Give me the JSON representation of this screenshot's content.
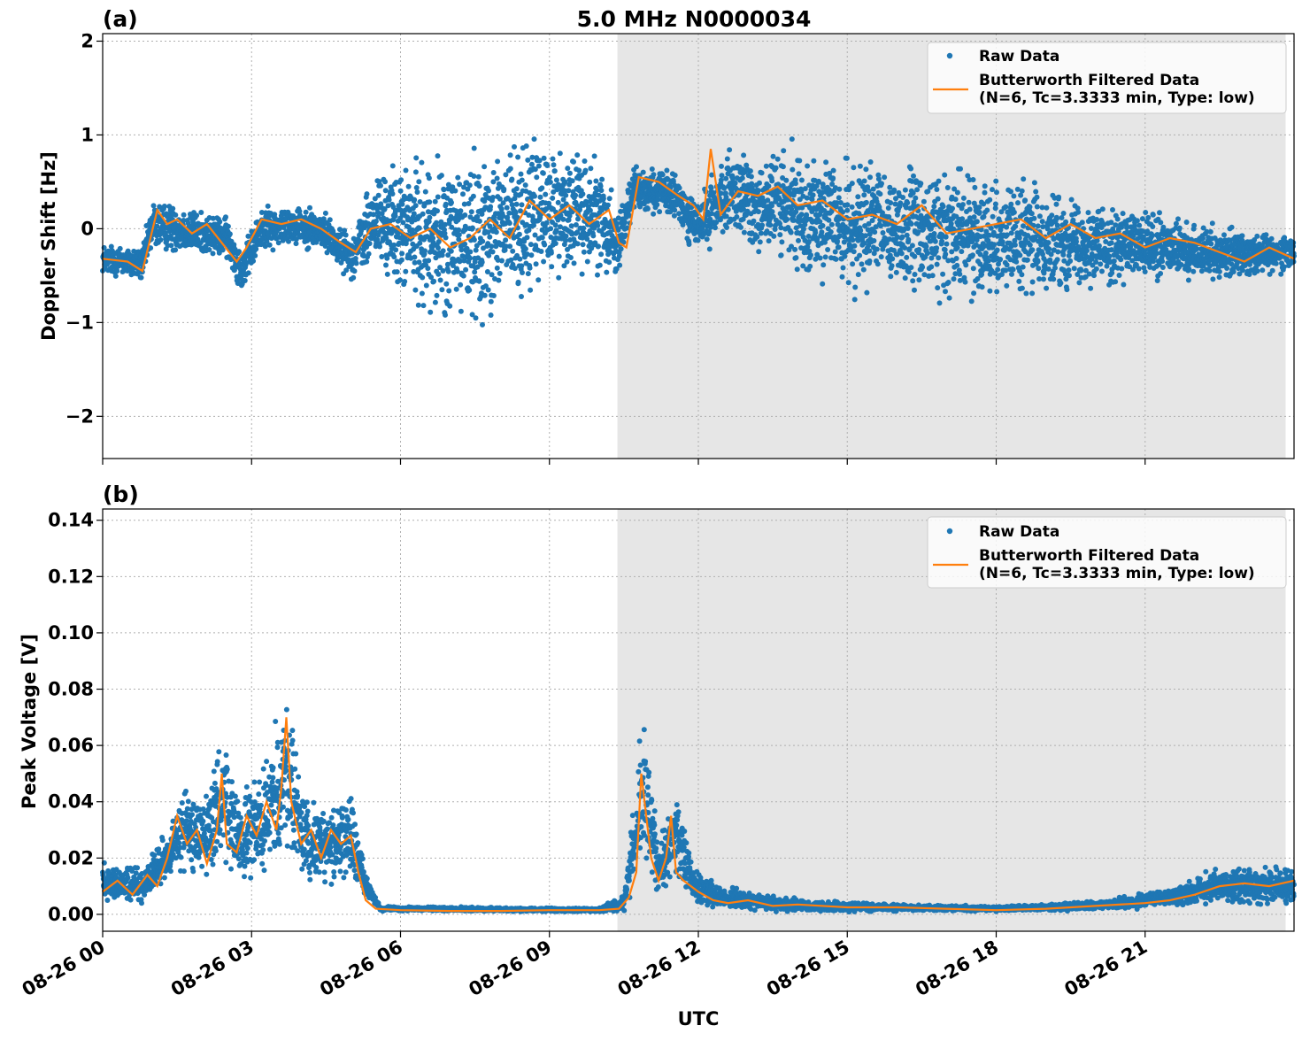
{
  "chart_data": [
    {
      "type": "scatter",
      "panel_label": "(a)",
      "title": "5.0 MHz N0000034",
      "xlabel": "",
      "ylabel": "Doppler Shift [Hz]",
      "x_range_hours": [
        0,
        24
      ],
      "ylim": [
        -2.45,
        2.08
      ],
      "yticks": [
        {
          "value": 2,
          "label": "2"
        },
        {
          "value": 1,
          "label": "1"
        },
        {
          "value": 0,
          "label": "0"
        },
        {
          "value": -1,
          "label": "−1"
        },
        {
          "value": -2,
          "label": "−2"
        }
      ],
      "grid": true,
      "legend_position": "top-right",
      "shaded_region_hours": [
        10.37,
        23.83
      ],
      "series": [
        {
          "name": "Raw Data",
          "kind": "points",
          "color": "#1f77b4",
          "profile": [
            {
              "x": 0.0,
              "center": -0.32,
              "spread": 0.22
            },
            {
              "x": 0.8,
              "center": -0.38,
              "spread": 0.25
            },
            {
              "x": 1.0,
              "center": 0.05,
              "spread": 0.35
            },
            {
              "x": 1.5,
              "center": 0.0,
              "spread": 0.35
            },
            {
              "x": 2.0,
              "center": -0.05,
              "spread": 0.3
            },
            {
              "x": 2.5,
              "center": -0.1,
              "spread": 0.3
            },
            {
              "x": 2.8,
              "center": -0.45,
              "spread": 0.3
            },
            {
              "x": 3.2,
              "center": 0.0,
              "spread": 0.3
            },
            {
              "x": 4.0,
              "center": 0.05,
              "spread": 0.3
            },
            {
              "x": 4.5,
              "center": -0.05,
              "spread": 0.3
            },
            {
              "x": 5.0,
              "center": -0.3,
              "spread": 0.3
            },
            {
              "x": 5.5,
              "center": 0.1,
              "spread": 0.7
            },
            {
              "x": 6.0,
              "center": 0.0,
              "spread": 0.9
            },
            {
              "x": 7.0,
              "center": -0.15,
              "spread": 1.2
            },
            {
              "x": 8.0,
              "center": 0.0,
              "spread": 1.2
            },
            {
              "x": 9.0,
              "center": 0.2,
              "spread": 1.0
            },
            {
              "x": 10.0,
              "center": 0.15,
              "spread": 0.8
            },
            {
              "x": 10.4,
              "center": -0.15,
              "spread": 0.5
            },
            {
              "x": 10.7,
              "center": 0.45,
              "spread": 0.3
            },
            {
              "x": 11.5,
              "center": 0.35,
              "spread": 0.35
            },
            {
              "x": 12.0,
              "center": 0.0,
              "spread": 0.4
            },
            {
              "x": 12.5,
              "center": 0.35,
              "spread": 0.6
            },
            {
              "x": 13.5,
              "center": 0.25,
              "spread": 0.8
            },
            {
              "x": 15.0,
              "center": 0.05,
              "spread": 0.9
            },
            {
              "x": 17.0,
              "center": -0.05,
              "spread": 0.9
            },
            {
              "x": 18.5,
              "center": -0.1,
              "spread": 0.8
            },
            {
              "x": 20.0,
              "center": -0.15,
              "spread": 0.6
            },
            {
              "x": 22.0,
              "center": -0.25,
              "spread": 0.4
            },
            {
              "x": 24.0,
              "center": -0.25,
              "spread": 0.25
            }
          ]
        },
        {
          "name": "Butterworth Filtered Data\n(N=6, Tc=3.3333 min, Type: low)",
          "kind": "line",
          "color": "#ff7f0e",
          "x": [
            0.0,
            0.5,
            0.8,
            1.1,
            1.3,
            1.5,
            1.8,
            2.1,
            2.4,
            2.7,
            2.9,
            3.2,
            3.6,
            4.0,
            4.4,
            4.8,
            5.1,
            5.4,
            5.8,
            6.2,
            6.6,
            7.0,
            7.4,
            7.8,
            8.2,
            8.6,
            9.0,
            9.4,
            9.8,
            10.2,
            10.4,
            10.55,
            10.8,
            11.2,
            11.6,
            11.9,
            12.1,
            12.25,
            12.45,
            12.8,
            13.2,
            13.6,
            14.0,
            14.5,
            15.0,
            15.5,
            16.0,
            16.5,
            17.0,
            17.5,
            18.0,
            18.5,
            19.0,
            19.5,
            20.0,
            20.5,
            21.0,
            21.5,
            22.0,
            22.5,
            23.0,
            23.5,
            24.0
          ],
          "y": [
            -0.32,
            -0.35,
            -0.45,
            0.2,
            0.05,
            0.1,
            -0.05,
            0.05,
            -0.15,
            -0.35,
            -0.2,
            0.1,
            0.05,
            0.1,
            0.0,
            -0.15,
            -0.25,
            0.0,
            0.05,
            -0.1,
            0.0,
            -0.2,
            -0.1,
            0.1,
            -0.1,
            0.3,
            0.1,
            0.25,
            0.05,
            0.2,
            -0.15,
            -0.2,
            0.55,
            0.5,
            0.35,
            0.25,
            0.1,
            0.85,
            0.15,
            0.4,
            0.35,
            0.45,
            0.25,
            0.3,
            0.1,
            0.15,
            0.05,
            0.25,
            -0.05,
            0.0,
            0.05,
            0.1,
            -0.1,
            0.05,
            -0.1,
            -0.05,
            -0.2,
            -0.1,
            -0.15,
            -0.25,
            -0.35,
            -0.2,
            -0.32
          ]
        }
      ]
    },
    {
      "type": "scatter",
      "panel_label": "(b)",
      "title": "",
      "xlabel": "UTC",
      "ylabel": "Peak Voltage [V]",
      "x_range_hours": [
        0,
        24
      ],
      "ylim": [
        -0.006,
        0.144
      ],
      "yticks": [
        {
          "value": 0.14,
          "label": "0.14"
        },
        {
          "value": 0.12,
          "label": "0.12"
        },
        {
          "value": 0.1,
          "label": "0.10"
        },
        {
          "value": 0.08,
          "label": "0.08"
        },
        {
          "value": 0.06,
          "label": "0.06"
        },
        {
          "value": 0.04,
          "label": "0.04"
        },
        {
          "value": 0.02,
          "label": "0.02"
        },
        {
          "value": 0.0,
          "label": "0.00"
        }
      ],
      "xticks": [
        {
          "value": 0,
          "label": "08-26 00"
        },
        {
          "value": 3,
          "label": "08-26 03"
        },
        {
          "value": 6,
          "label": "08-26 06"
        },
        {
          "value": 9,
          "label": "08-26 09"
        },
        {
          "value": 12,
          "label": "08-26 12"
        },
        {
          "value": 15,
          "label": "08-26 15"
        },
        {
          "value": 18,
          "label": "08-26 18"
        },
        {
          "value": 21,
          "label": "08-26 21"
        }
      ],
      "grid": true,
      "legend_position": "top-right",
      "shaded_region_hours": [
        10.37,
        23.83
      ],
      "series": [
        {
          "name": "Raw Data",
          "kind": "points",
          "color": "#1f77b4",
          "profile": [
            {
              "x": 0.0,
              "center": 0.012,
              "spread": 0.009
            },
            {
              "x": 0.8,
              "center": 0.01,
              "spread": 0.008
            },
            {
              "x": 1.3,
              "center": 0.02,
              "spread": 0.012
            },
            {
              "x": 1.6,
              "center": 0.03,
              "spread": 0.02
            },
            {
              "x": 2.0,
              "center": 0.028,
              "spread": 0.018
            },
            {
              "x": 2.4,
              "center": 0.04,
              "spread": 0.03
            },
            {
              "x": 2.8,
              "center": 0.025,
              "spread": 0.02
            },
            {
              "x": 3.2,
              "center": 0.035,
              "spread": 0.025
            },
            {
              "x": 3.7,
              "center": 0.05,
              "spread": 0.04
            },
            {
              "x": 4.1,
              "center": 0.025,
              "spread": 0.02
            },
            {
              "x": 4.5,
              "center": 0.025,
              "spread": 0.018
            },
            {
              "x": 5.0,
              "center": 0.028,
              "spread": 0.02
            },
            {
              "x": 5.3,
              "center": 0.01,
              "spread": 0.005
            },
            {
              "x": 5.6,
              "center": 0.002,
              "spread": 0.001
            },
            {
              "x": 10.0,
              "center": 0.0015,
              "spread": 0.0008
            },
            {
              "x": 10.5,
              "center": 0.004,
              "spread": 0.004
            },
            {
              "x": 10.9,
              "center": 0.045,
              "spread": 0.035
            },
            {
              "x": 11.2,
              "center": 0.015,
              "spread": 0.01
            },
            {
              "x": 11.5,
              "center": 0.03,
              "spread": 0.025
            },
            {
              "x": 11.9,
              "center": 0.01,
              "spread": 0.008
            },
            {
              "x": 12.5,
              "center": 0.006,
              "spread": 0.005
            },
            {
              "x": 14.0,
              "center": 0.003,
              "spread": 0.003
            },
            {
              "x": 16.0,
              "center": 0.0025,
              "spread": 0.0015
            },
            {
              "x": 18.0,
              "center": 0.002,
              "spread": 0.0012
            },
            {
              "x": 20.0,
              "center": 0.003,
              "spread": 0.002
            },
            {
              "x": 21.5,
              "center": 0.006,
              "spread": 0.004
            },
            {
              "x": 22.5,
              "center": 0.01,
              "spread": 0.008
            },
            {
              "x": 24.0,
              "center": 0.01,
              "spread": 0.01
            }
          ]
        },
        {
          "name": "Butterworth Filtered Data\n(N=6, Tc=3.3333 min, Type: low)",
          "kind": "line",
          "color": "#ff7f0e",
          "x": [
            0.0,
            0.3,
            0.6,
            0.9,
            1.1,
            1.3,
            1.5,
            1.7,
            1.9,
            2.1,
            2.3,
            2.4,
            2.5,
            2.7,
            2.9,
            3.1,
            3.3,
            3.5,
            3.6,
            3.7,
            3.8,
            4.0,
            4.2,
            4.4,
            4.6,
            4.8,
            5.0,
            5.15,
            5.3,
            5.5,
            6.0,
            7.0,
            8.0,
            9.0,
            10.0,
            10.4,
            10.6,
            10.75,
            10.85,
            10.95,
            11.05,
            11.2,
            11.35,
            11.45,
            11.55,
            11.7,
            11.85,
            12.0,
            12.3,
            12.6,
            13.0,
            13.5,
            14.0,
            15.0,
            16.0,
            17.0,
            18.0,
            19.0,
            20.0,
            21.0,
            21.5,
            22.0,
            22.5,
            23.0,
            23.5,
            24.0
          ],
          "y": [
            0.008,
            0.012,
            0.007,
            0.014,
            0.01,
            0.02,
            0.035,
            0.025,
            0.03,
            0.018,
            0.03,
            0.05,
            0.025,
            0.022,
            0.035,
            0.028,
            0.04,
            0.03,
            0.045,
            0.07,
            0.04,
            0.025,
            0.03,
            0.02,
            0.03,
            0.025,
            0.028,
            0.015,
            0.005,
            0.002,
            0.0015,
            0.0012,
            0.0012,
            0.0015,
            0.0015,
            0.002,
            0.006,
            0.015,
            0.05,
            0.035,
            0.02,
            0.012,
            0.02,
            0.035,
            0.015,
            0.012,
            0.01,
            0.008,
            0.005,
            0.004,
            0.005,
            0.003,
            0.0035,
            0.0025,
            0.0025,
            0.002,
            0.0015,
            0.002,
            0.003,
            0.004,
            0.005,
            0.007,
            0.01,
            0.011,
            0.01,
            0.012
          ]
        }
      ]
    }
  ],
  "colors": {
    "raw": "#1f77b4",
    "filtered": "#ff7f0e",
    "shade": "#e6e6e6",
    "grid": "#b0b0b0"
  }
}
